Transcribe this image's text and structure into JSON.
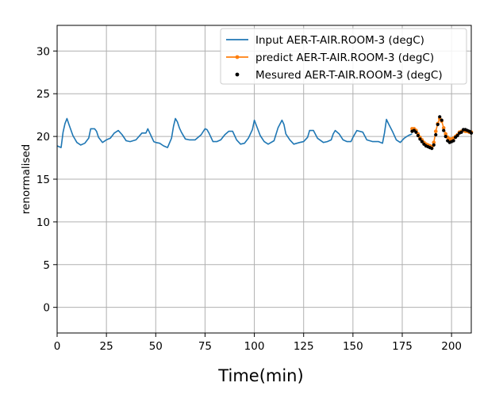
{
  "chart_data": {
    "type": "line",
    "title": "",
    "xlabel": "Time(min)",
    "ylabel": "renormalised",
    "xlim": [
      0,
      210
    ],
    "ylim": [
      -3,
      33
    ],
    "xticks": [
      0,
      25,
      50,
      75,
      100,
      125,
      150,
      175,
      200
    ],
    "yticks": [
      0,
      5,
      10,
      15,
      20,
      25,
      30
    ],
    "grid": true,
    "legend": "top-right",
    "series": [
      {
        "name": "Input AER-T-AIR.ROOM-3 (degC)",
        "style": "line",
        "color": "#1f77b4",
        "x": [
          0,
          2,
          3,
          4,
          5,
          6,
          8,
          10,
          12,
          14,
          16,
          17,
          19,
          20,
          21,
          23,
          25,
          27,
          29,
          31,
          33,
          35,
          37,
          40,
          43,
          45,
          46,
          47,
          49,
          50,
          52,
          54,
          56,
          58,
          59,
          60,
          61,
          62,
          63,
          65,
          67,
          70,
          73,
          75,
          76,
          77,
          79,
          81,
          83,
          85,
          87,
          89,
          90,
          91,
          93,
          95,
          97,
          99,
          100,
          101,
          103,
          105,
          107,
          110,
          112,
          114,
          115,
          116,
          118,
          120,
          123,
          125,
          127,
          128,
          130,
          132,
          135,
          137,
          139,
          140,
          141,
          143,
          145,
          147,
          149,
          150,
          152,
          155,
          157,
          160,
          163,
          165,
          166,
          167,
          168,
          170,
          172,
          174,
          176,
          178,
          180
        ],
        "y": [
          18.9,
          18.7,
          20.5,
          21.5,
          22.1,
          21.4,
          20.1,
          19.3,
          19.0,
          19.2,
          19.8,
          20.9,
          20.9,
          20.6,
          19.9,
          19.3,
          19.6,
          19.8,
          20.4,
          20.7,
          20.2,
          19.5,
          19.4,
          19.6,
          20.4,
          20.4,
          20.9,
          20.4,
          19.4,
          19.3,
          19.2,
          18.9,
          18.7,
          19.8,
          21.2,
          22.1,
          21.7,
          21.0,
          20.5,
          19.7,
          19.6,
          19.6,
          20.2,
          20.9,
          20.8,
          20.4,
          19.4,
          19.4,
          19.6,
          20.2,
          20.6,
          20.6,
          20.1,
          19.6,
          19.1,
          19.2,
          19.8,
          20.8,
          21.9,
          21.3,
          20.1,
          19.4,
          19.1,
          19.5,
          21.0,
          21.9,
          21.4,
          20.3,
          19.6,
          19.1,
          19.3,
          19.4,
          19.9,
          20.7,
          20.7,
          19.8,
          19.3,
          19.4,
          19.6,
          20.3,
          20.7,
          20.3,
          19.6,
          19.4,
          19.4,
          19.9,
          20.7,
          20.5,
          19.6,
          19.4,
          19.4,
          19.2,
          20.4,
          22.0,
          21.5,
          20.6,
          19.6,
          19.3,
          19.8,
          20.1,
          20.3
        ]
      },
      {
        "name": " predict AER-T-AIR.ROOM-3 (degC)",
        "style": "line-marker",
        "color": "#ff7f0e",
        "x": [
          180,
          181,
          182,
          183,
          184,
          185,
          186,
          187,
          188,
          189,
          190,
          191,
          192,
          193,
          194,
          195,
          196,
          197,
          198,
          199,
          200,
          201,
          202,
          203,
          204,
          205,
          206,
          207,
          208,
          209,
          210
        ],
        "y": [
          20.9,
          20.9,
          20.7,
          20.3,
          19.9,
          19.6,
          19.3,
          19.1,
          19.0,
          18.9,
          18.8,
          19.3,
          20.6,
          21.5,
          22.1,
          21.8,
          21.0,
          20.3,
          19.9,
          19.7,
          19.7,
          19.8,
          20.0,
          20.2,
          20.5,
          20.6,
          20.7,
          20.6,
          20.6,
          20.5,
          20.5
        ]
      },
      {
        "name": "Mesured AER-T-AIR.ROOM-3 (degC)",
        "style": "scatter",
        "color": "#000000",
        "x": [
          180,
          181,
          182,
          183,
          184,
          185,
          186,
          187,
          188,
          189,
          190,
          191,
          192,
          193,
          194,
          195,
          196,
          197,
          198,
          199,
          200,
          201,
          202,
          203,
          204,
          205,
          206,
          207,
          208,
          209,
          210
        ],
        "y": [
          20.6,
          20.7,
          20.5,
          20.1,
          19.7,
          19.4,
          19.1,
          18.9,
          18.8,
          18.7,
          18.6,
          19.0,
          20.2,
          21.4,
          22.3,
          21.9,
          20.7,
          20.0,
          19.5,
          19.3,
          19.4,
          19.5,
          19.9,
          20.1,
          20.4,
          20.5,
          20.8,
          20.8,
          20.7,
          20.6,
          20.4
        ]
      }
    ]
  }
}
